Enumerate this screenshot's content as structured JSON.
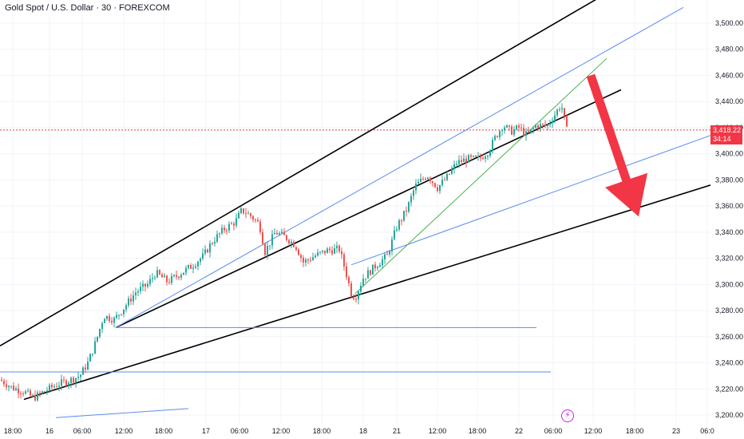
{
  "header": {
    "title": "Gold Spot / U.S. Dollar · 30 · FOREXCOM"
  },
  "price_badge": {
    "price": "3,418.22",
    "countdown": "34:14"
  },
  "event_icon": "lightning-icon",
  "colors": {
    "up": "#26a69a",
    "down": "#ef5350",
    "channel_black": "#000000",
    "channel_blue": "#5b8def",
    "trend_green": "#4caf50",
    "arrow": "#f23645",
    "current_price_line": "#f23645"
  },
  "chart_data": {
    "type": "candlestick",
    "symbol": "Gold Spot / U.S. Dollar",
    "interval": "30",
    "exchange": "FOREXCOM",
    "ylim": [
      3195,
      3525
    ],
    "y_ticks": [
      "3,500.00",
      "3,480.00",
      "3,460.00",
      "3,440.00",
      "3,420.00",
      "3,400.00",
      "3,380.00",
      "3,360.00",
      "3,340.00",
      "3,320.00",
      "3,300.00",
      "3,280.00",
      "3,260.00",
      "3,240.00",
      "3,220.00",
      "3,200.00"
    ],
    "x_ticks": [
      "18:00",
      "16",
      "06:00",
      "12:00",
      "18:00",
      "17",
      "06:00",
      "12:00",
      "18:00",
      "18",
      "21",
      "12:00",
      "18:00",
      "22",
      "06:00",
      "12:00",
      "18:00",
      "23",
      "06:0"
    ],
    "current_price": 3418.22,
    "close_path": [
      {
        "x": 0,
        "y": 3227
      },
      {
        "x": 15,
        "y": 3221
      },
      {
        "x": 30,
        "y": 3218
      },
      {
        "x": 42,
        "y": 3213
      },
      {
        "x": 55,
        "y": 3218
      },
      {
        "x": 70,
        "y": 3223
      },
      {
        "x": 85,
        "y": 3226
      },
      {
        "x": 100,
        "y": 3230
      },
      {
        "x": 110,
        "y": 3240
      },
      {
        "x": 120,
        "y": 3256
      },
      {
        "x": 130,
        "y": 3276
      },
      {
        "x": 143,
        "y": 3273
      },
      {
        "x": 155,
        "y": 3282
      },
      {
        "x": 170,
        "y": 3294
      },
      {
        "x": 185,
        "y": 3300
      },
      {
        "x": 195,
        "y": 3309
      },
      {
        "x": 210,
        "y": 3302
      },
      {
        "x": 225,
        "y": 3308
      },
      {
        "x": 240,
        "y": 3314
      },
      {
        "x": 255,
        "y": 3322
      },
      {
        "x": 265,
        "y": 3332
      },
      {
        "x": 280,
        "y": 3342
      },
      {
        "x": 295,
        "y": 3348
      },
      {
        "x": 303,
        "y": 3357
      },
      {
        "x": 315,
        "y": 3352
      },
      {
        "x": 325,
        "y": 3346
      },
      {
        "x": 332,
        "y": 3325
      },
      {
        "x": 345,
        "y": 3340
      },
      {
        "x": 358,
        "y": 3336
      },
      {
        "x": 370,
        "y": 3330
      },
      {
        "x": 380,
        "y": 3317
      },
      {
        "x": 395,
        "y": 3322
      },
      {
        "x": 410,
        "y": 3326
      },
      {
        "x": 425,
        "y": 3327
      },
      {
        "x": 433,
        "y": 3310
      },
      {
        "x": 440,
        "y": 3293
      },
      {
        "x": 445,
        "y": 3290
      },
      {
        "x": 455,
        "y": 3305
      },
      {
        "x": 470,
        "y": 3314
      },
      {
        "x": 485,
        "y": 3322
      },
      {
        "x": 497,
        "y": 3344
      },
      {
        "x": 510,
        "y": 3358
      },
      {
        "x": 520,
        "y": 3375
      },
      {
        "x": 535,
        "y": 3384
      },
      {
        "x": 548,
        "y": 3374
      },
      {
        "x": 560,
        "y": 3382
      },
      {
        "x": 572,
        "y": 3393
      },
      {
        "x": 585,
        "y": 3396
      },
      {
        "x": 600,
        "y": 3396
      },
      {
        "x": 612,
        "y": 3402
      },
      {
        "x": 620,
        "y": 3412
      },
      {
        "x": 630,
        "y": 3422
      },
      {
        "x": 640,
        "y": 3417
      },
      {
        "x": 650,
        "y": 3420
      },
      {
        "x": 660,
        "y": 3414
      },
      {
        "x": 672,
        "y": 3422
      },
      {
        "x": 685,
        "y": 3421
      },
      {
        "x": 695,
        "y": 3430
      },
      {
        "x": 703,
        "y": 3438
      },
      {
        "x": 710,
        "y": 3418
      }
    ],
    "annotations": {
      "black_lines": [
        {
          "x1": 0,
          "y1": 3253,
          "x2": 780,
          "y2": 3530
        },
        {
          "x1": 145,
          "y1": 3267,
          "x2": 778,
          "y2": 3449
        },
        {
          "x1": 30,
          "y1": 3212,
          "x2": 890,
          "y2": 3376
        }
      ],
      "blue_lines": [
        {
          "x1": 145,
          "y1": 3267,
          "x2": 856,
          "y2": 3512
        },
        {
          "x1": 440,
          "y1": 3315,
          "x2": 890,
          "y2": 3414
        },
        {
          "x1": 145,
          "y1": 3267,
          "x2": 672,
          "y2": 3267
        },
        {
          "x1": 0,
          "y1": 3233,
          "x2": 690,
          "y2": 3233
        },
        {
          "x1": 70,
          "y1": 3198,
          "x2": 236,
          "y2": 3205
        }
      ],
      "green_lines": [
        {
          "x1": 445,
          "y1": 3293,
          "x2": 760,
          "y2": 3473
        }
      ],
      "arrow": {
        "from_x": 740,
        "from_y": 3460,
        "to_x": 800,
        "to_y": 3352
      }
    }
  }
}
